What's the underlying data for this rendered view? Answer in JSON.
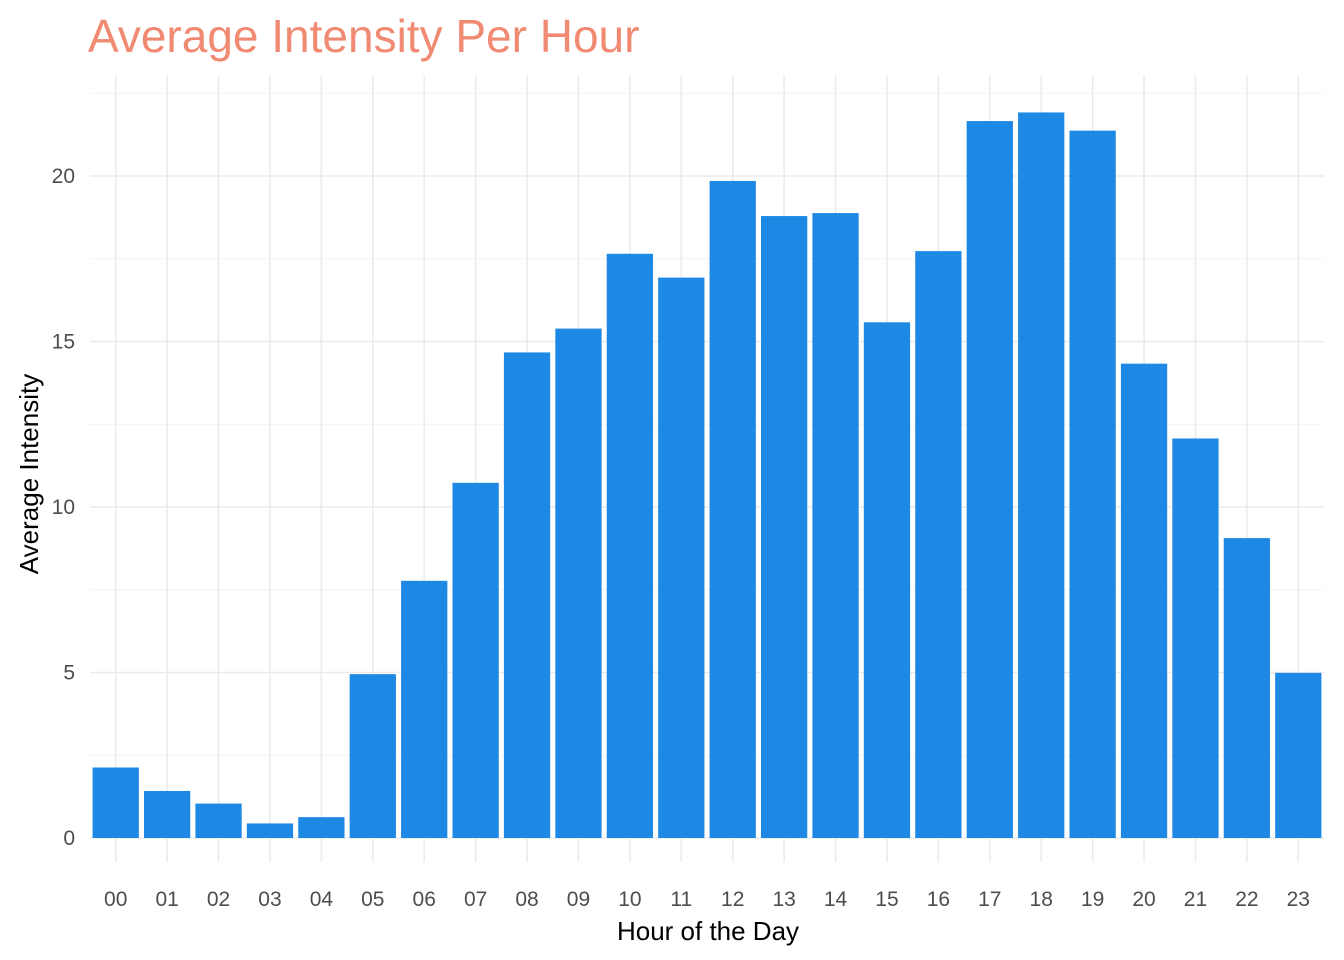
{
  "chart_data": {
    "type": "bar",
    "title": "Average Intensity Per Hour",
    "xlabel": "Hour of the Day",
    "ylabel": "Average Intensity",
    "categories": [
      "00",
      "01",
      "02",
      "03",
      "04",
      "05",
      "06",
      "07",
      "08",
      "09",
      "10",
      "11",
      "12",
      "13",
      "14",
      "15",
      "16",
      "17",
      "18",
      "19",
      "20",
      "21",
      "22",
      "23"
    ],
    "values": [
      2.13,
      1.42,
      1.04,
      0.44,
      0.63,
      4.95,
      7.77,
      10.73,
      14.67,
      15.39,
      17.65,
      16.93,
      19.85,
      18.79,
      18.88,
      15.58,
      17.73,
      21.66,
      21.92,
      21.37,
      14.33,
      12.07,
      9.06,
      4.99
    ],
    "ylim": [
      0,
      22
    ],
    "yticks": [
      0,
      5,
      10,
      15,
      20
    ],
    "grid": true,
    "legend": "none",
    "colors": {
      "bar": "#1e88e5",
      "title": "#f08a72",
      "grid": "#ebebeb"
    }
  }
}
